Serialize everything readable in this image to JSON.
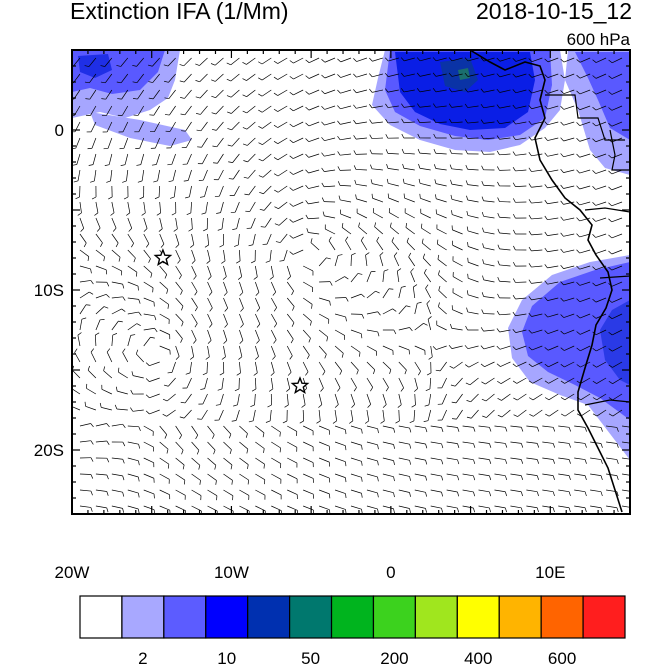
{
  "title": {
    "left": "Extinction IFA (1/Mm)",
    "right": "2018-10-15_12",
    "level": "600 hPa"
  },
  "map": {
    "lon_range": [
      -20,
      15
    ],
    "lat_range": [
      -24,
      5
    ],
    "x_ticks": [
      {
        "lon": -20,
        "label": "20W"
      },
      {
        "lon": -10,
        "label": "10W"
      },
      {
        "lon": 0,
        "label": "0"
      },
      {
        "lon": 10,
        "label": "10E"
      }
    ],
    "y_ticks": [
      {
        "lat": 0,
        "label": "0"
      },
      {
        "lat": -10,
        "label": "10S"
      },
      {
        "lat": -20,
        "label": "20S"
      }
    ],
    "markers": [
      {
        "name": "star-marker-1",
        "lon": -14.3,
        "lat": -8
      },
      {
        "name": "star-marker-2",
        "lon": -5.7,
        "lat": -16
      }
    ],
    "field_colors": {
      "light": "#a6a6ff",
      "medium": "#5959ff",
      "strong": "#0000e6",
      "dark": "#0a33a6",
      "teal": "#1a6e6e"
    }
  },
  "colorbar": {
    "colors": [
      "#ffffff",
      "#a8a8ff",
      "#5c5cff",
      "#0000ff",
      "#0030b0",
      "#00786e",
      "#00b41e",
      "#3cd21e",
      "#a0e61e",
      "#ffff00",
      "#ffb400",
      "#ff6400",
      "#ff1e1e"
    ],
    "labels": [
      {
        "after_index": 1,
        "text": "2"
      },
      {
        "after_index": 3,
        "text": "10"
      },
      {
        "after_index": 5,
        "text": "50"
      },
      {
        "after_index": 7,
        "text": "200"
      },
      {
        "after_index": 9,
        "text": "400"
      },
      {
        "after_index": 11,
        "text": "600"
      }
    ]
  }
}
